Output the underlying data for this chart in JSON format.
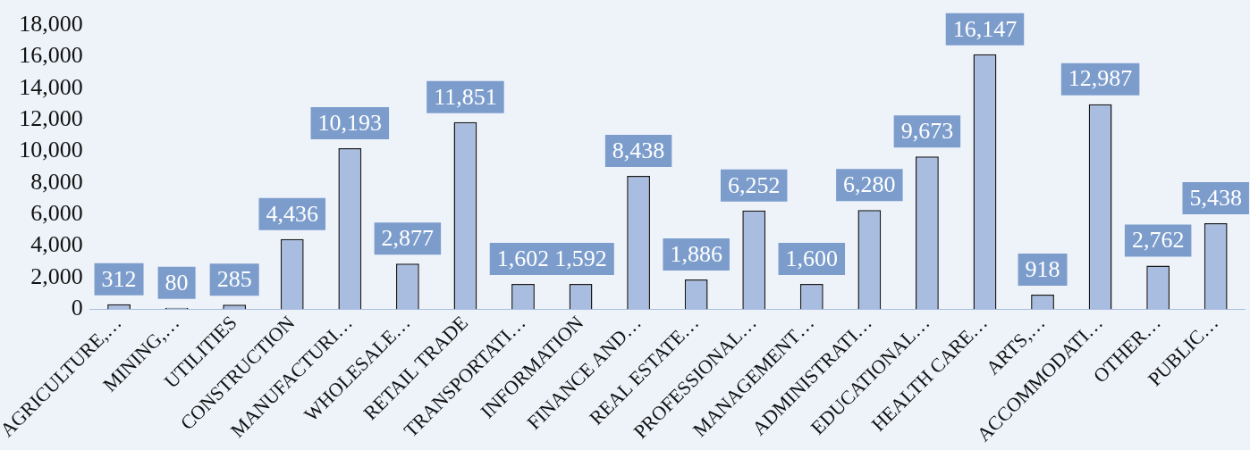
{
  "chart_data": {
    "type": "bar",
    "categories": [
      "AGRICULTURE,…",
      "MINING,…",
      "UTILITIES",
      "CONSTRUCTION",
      "MANUFACTURI…",
      "WHOLESALE…",
      "RETAIL TRADE",
      "TRANSPORTATI…",
      "INFORMATION",
      "FINANCE AND…",
      "REAL ESTATE…",
      "PROFESSIONAL…",
      "MANAGEMENT…",
      "ADMINISTRATI…",
      "EDUCATIONAL…",
      "HEALTH CARE…",
      "ARTS,…",
      "ACCOMMODATI…",
      "OTHER…",
      "PUBLIC…"
    ],
    "values": [
      312,
      80,
      285,
      4436,
      10193,
      2877,
      11851,
      1602,
      1592,
      8438,
      1886,
      6252,
      1600,
      6280,
      9673,
      16147,
      918,
      12987,
      2762,
      5438
    ],
    "value_labels": [
      "312",
      "80",
      "285",
      "4,436",
      "10,193",
      "2,877",
      "11,851",
      "1,602",
      "1,592",
      "8,438",
      "1,886",
      "6,252",
      "1,600",
      "6,280",
      "9,673",
      "16,147",
      "918",
      "12,987",
      "2,762",
      "5,438"
    ],
    "color": "#a8bde0",
    "ylim": [
      0,
      18000
    ],
    "yticks": [
      0,
      {
        "value": 2000,
        "label": "2,000"
      },
      {
        "value": 4000,
        "label": "4,000"
      },
      {
        "value": 6000,
        "label": "6,000"
      },
      {
        "value": 8000,
        "label": "8,000"
      },
      {
        "value": 10000,
        "label": "10,000"
      },
      {
        "value": 12000,
        "label": "12,000"
      },
      {
        "value": 14000,
        "label": "14,000"
      },
      {
        "value": 16000,
        "label": "16,000"
      },
      {
        "value": 18000,
        "label": "18,000"
      }
    ]
  }
}
